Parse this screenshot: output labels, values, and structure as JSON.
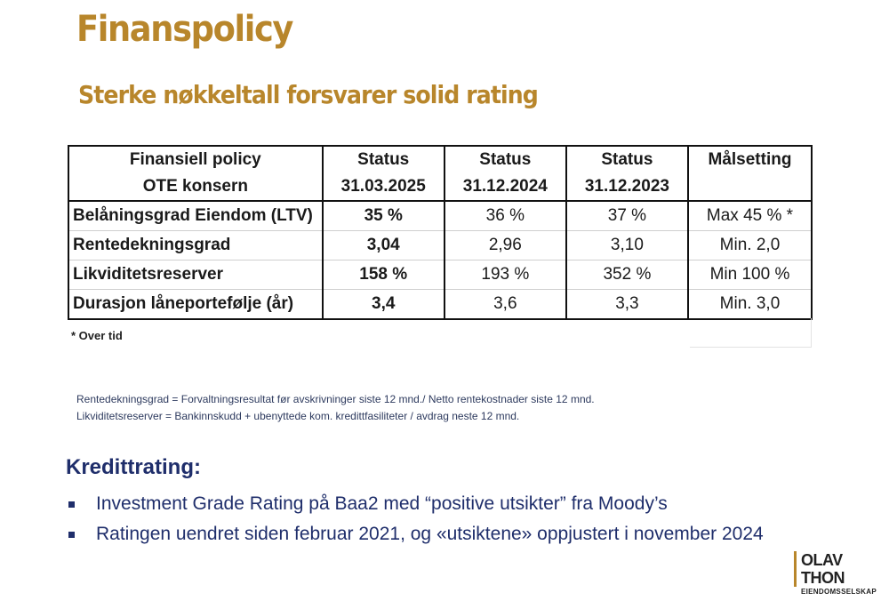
{
  "title": "Finanspolicy",
  "subtitle": "Sterke nøkkeltall forsvarer solid rating",
  "table": {
    "headers": [
      [
        "Finansiell policy",
        "OTE konsern"
      ],
      [
        "Status",
        "31.03.2025"
      ],
      [
        "Status",
        "31.12.2024"
      ],
      [
        "Status",
        "31.12.2023"
      ],
      [
        "Målsetting",
        ""
      ]
    ],
    "rows": [
      [
        "Belåningsgrad Eiendom (LTV)",
        "35 %",
        "36 %",
        "37 %",
        "Max 45 % *"
      ],
      [
        "Rentedekningsgrad",
        "3,04",
        "2,96",
        "3,10",
        "Min. 2,0"
      ],
      [
        "Likviditetsreserver",
        "158 %",
        "193 %",
        "352 %",
        "Min 100 %"
      ],
      [
        "Durasjon låneportefølje (år)",
        "3,4",
        "3,6",
        "3,3",
        "Min. 3,0"
      ]
    ]
  },
  "footnote": "* Over tid",
  "definitions": [
    "Rentedekningsgrad = Forvaltningsresultat før avskrivninger siste 12 mnd./ Netto rentekostnader siste 12 mnd.",
    "Likviditetsreserver = Bankinnskudd + ubenyttede kom.  kredittfasiliteter / avdrag neste 12 mnd."
  ],
  "kredittrating": {
    "title": "Kredittrating:",
    "bullets": [
      "Investment Grade Rating på Baa2 med “positive utsikter” fra Moody’s",
      "Ratingen uendret siden februar 2021, og «utsiktene» oppjustert i november 2024"
    ]
  },
  "logo": {
    "main": "OLAV THON",
    "sub": "EIENDOMSSELSKAP"
  },
  "colors": {
    "title": "#B8862B",
    "navy": "#1F2E6B"
  }
}
